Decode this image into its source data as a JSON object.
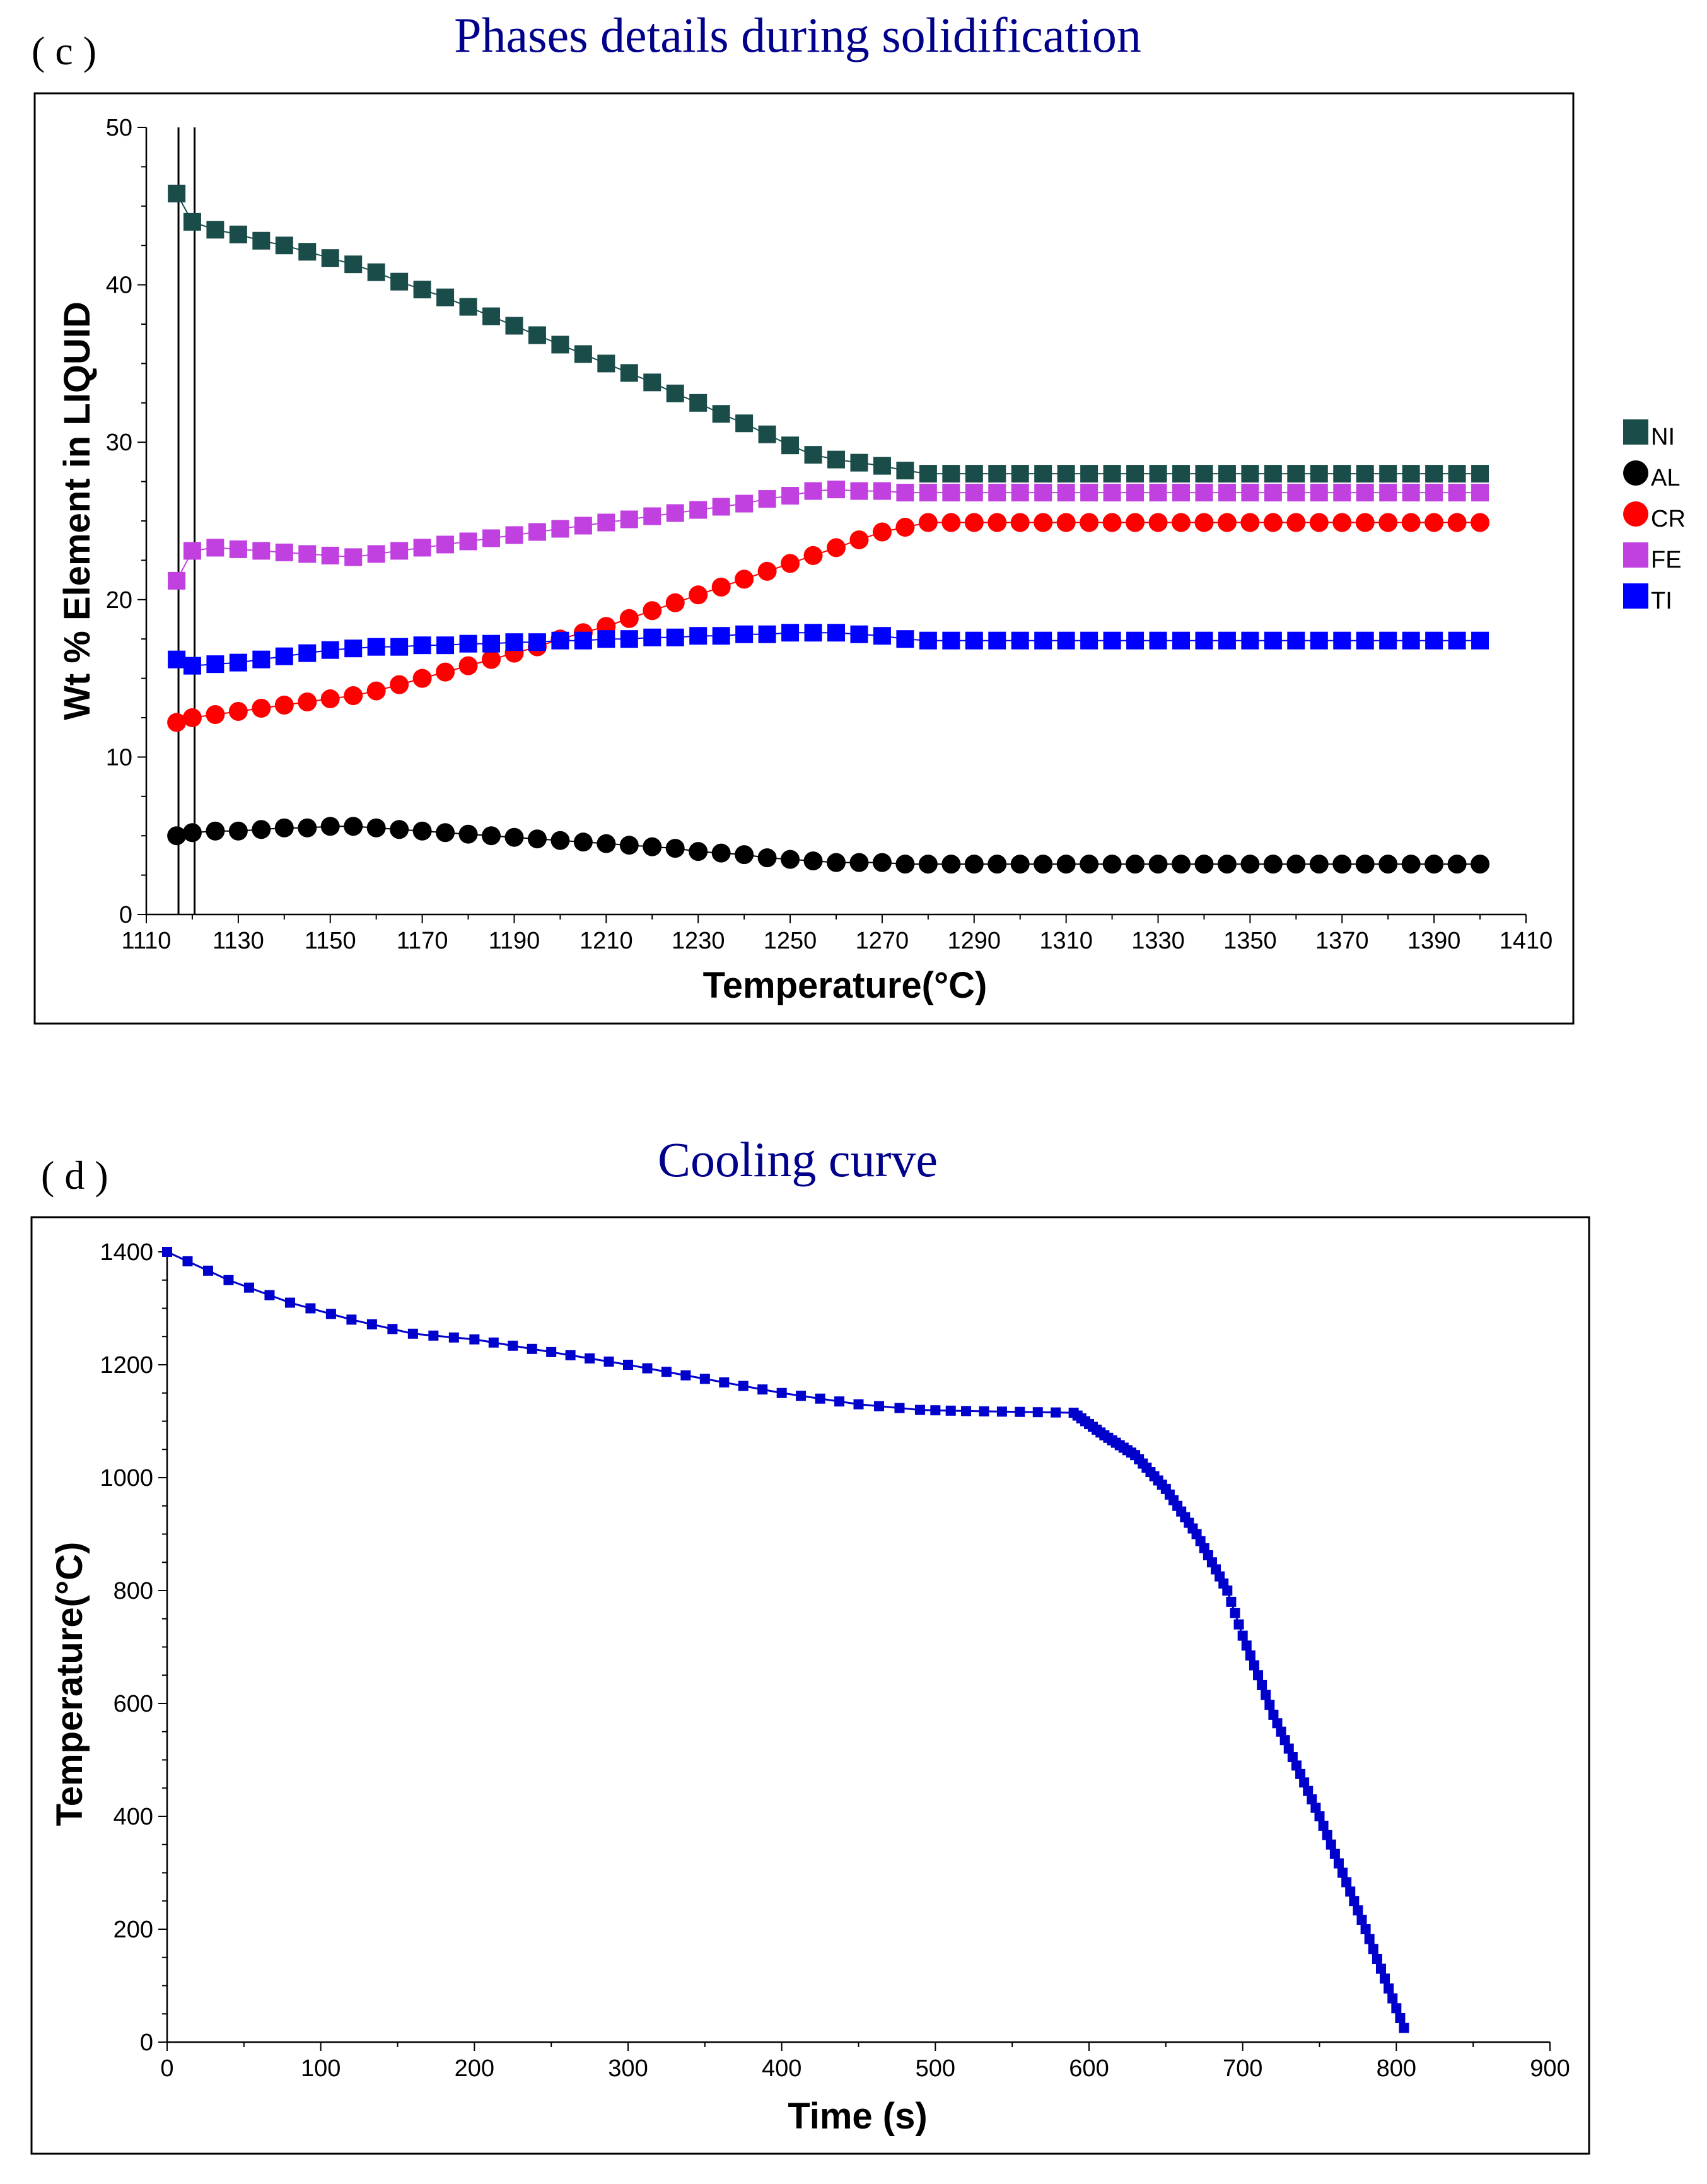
{
  "figure": {
    "title_color": "#00008b",
    "frame_color": "#000000"
  },
  "chart_data": [
    {
      "panel_label": "( c )",
      "type": "scatter",
      "title": "Phases details during solidification",
      "xlabel": "Temperature(°C)",
      "ylabel": "Wt %  Element in LIQUID",
      "xlim": [
        1110,
        1410
      ],
      "ylim": [
        0,
        50
      ],
      "xticks": [
        1110,
        1130,
        1150,
        1170,
        1190,
        1210,
        1230,
        1250,
        1270,
        1290,
        1310,
        1330,
        1350,
        1370,
        1390,
        1410
      ],
      "yticks": [
        0,
        10,
        20,
        30,
        40,
        50
      ],
      "vertical_reference_lines": [
        1117,
        1120.5
      ],
      "legend_position": "right",
      "x": [
        1116.6,
        1120.0,
        1125,
        1130,
        1135,
        1140,
        1145,
        1150,
        1155,
        1160,
        1165,
        1170,
        1175,
        1180,
        1185,
        1190,
        1195,
        1200,
        1205,
        1210,
        1215,
        1220,
        1225,
        1230,
        1235,
        1240,
        1245,
        1250,
        1255,
        1260,
        1265,
        1270,
        1275,
        1280,
        1285,
        1290,
        1295,
        1300,
        1305,
        1310,
        1315,
        1320,
        1325,
        1330,
        1335,
        1340,
        1345,
        1350,
        1355,
        1360,
        1365,
        1370,
        1375,
        1380,
        1385,
        1390,
        1395,
        1400
      ],
      "series": [
        {
          "name": "NI",
          "marker": "square",
          "color": "#1a4d4a",
          "values": [
            45.8,
            44.0,
            43.5,
            43.2,
            42.8,
            42.5,
            42.1,
            41.7,
            41.3,
            40.8,
            40.2,
            39.7,
            39.2,
            38.6,
            38.0,
            37.4,
            36.8,
            36.2,
            35.6,
            35.0,
            34.4,
            33.8,
            33.1,
            32.5,
            31.8,
            31.2,
            30.5,
            29.8,
            29.2,
            28.9,
            28.7,
            28.5,
            28.2,
            28.0,
            28.0,
            28.0,
            28.0,
            28.0,
            28.0,
            28.0,
            28.0,
            28.0,
            28.0,
            28.0,
            28.0,
            28.0,
            28.0,
            28.0,
            28.0,
            28.0,
            28.0,
            28.0,
            28.0,
            28.0,
            28.0,
            28.0,
            28.0,
            28.0
          ]
        },
        {
          "name": "AL",
          "marker": "circle",
          "color": "#000000",
          "values": [
            5.0,
            5.2,
            5.3,
            5.3,
            5.4,
            5.5,
            5.5,
            5.6,
            5.6,
            5.5,
            5.4,
            5.3,
            5.2,
            5.1,
            5.0,
            4.9,
            4.8,
            4.7,
            4.6,
            4.5,
            4.4,
            4.3,
            4.2,
            4.0,
            3.9,
            3.8,
            3.6,
            3.5,
            3.4,
            3.3,
            3.3,
            3.3,
            3.2,
            3.2,
            3.2,
            3.2,
            3.2,
            3.2,
            3.2,
            3.2,
            3.2,
            3.2,
            3.2,
            3.2,
            3.2,
            3.2,
            3.2,
            3.2,
            3.2,
            3.2,
            3.2,
            3.2,
            3.2,
            3.2,
            3.2,
            3.2,
            3.2,
            3.2
          ]
        },
        {
          "name": "CR",
          "marker": "circle",
          "color": "#ff0000",
          "values": [
            12.2,
            12.5,
            12.7,
            12.9,
            13.1,
            13.3,
            13.5,
            13.7,
            13.9,
            14.2,
            14.6,
            15.0,
            15.4,
            15.8,
            16.2,
            16.6,
            17.0,
            17.5,
            17.9,
            18.3,
            18.8,
            19.3,
            19.8,
            20.3,
            20.8,
            21.3,
            21.8,
            22.3,
            22.8,
            23.3,
            23.8,
            24.3,
            24.6,
            24.9,
            24.9,
            24.9,
            24.9,
            24.9,
            24.9,
            24.9,
            24.9,
            24.9,
            24.9,
            24.9,
            24.9,
            24.9,
            24.9,
            24.9,
            24.9,
            24.9,
            24.9,
            24.9,
            24.9,
            24.9,
            24.9,
            24.9,
            24.9,
            24.9
          ]
        },
        {
          "name": "FE",
          "marker": "square",
          "color": "#c040e0",
          "values": [
            21.2,
            23.1,
            23.3,
            23.2,
            23.1,
            23.0,
            22.9,
            22.8,
            22.7,
            22.9,
            23.1,
            23.3,
            23.5,
            23.7,
            23.9,
            24.1,
            24.3,
            24.5,
            24.7,
            24.9,
            25.1,
            25.3,
            25.5,
            25.7,
            25.9,
            26.1,
            26.4,
            26.6,
            26.9,
            27.0,
            26.9,
            26.9,
            26.8,
            26.8,
            26.8,
            26.8,
            26.8,
            26.8,
            26.8,
            26.8,
            26.8,
            26.8,
            26.8,
            26.8,
            26.8,
            26.8,
            26.8,
            26.8,
            26.8,
            26.8,
            26.8,
            26.8,
            26.8,
            26.8,
            26.8,
            26.8,
            26.8,
            26.8
          ]
        },
        {
          "name": "TI",
          "marker": "square",
          "color": "#0000ff",
          "values": [
            16.2,
            15.8,
            15.9,
            16.0,
            16.2,
            16.4,
            16.6,
            16.8,
            16.9,
            17.0,
            17.0,
            17.1,
            17.1,
            17.2,
            17.2,
            17.3,
            17.3,
            17.4,
            17.4,
            17.5,
            17.5,
            17.6,
            17.6,
            17.7,
            17.7,
            17.8,
            17.8,
            17.9,
            17.9,
            17.9,
            17.8,
            17.7,
            17.5,
            17.4,
            17.4,
            17.4,
            17.4,
            17.4,
            17.4,
            17.4,
            17.4,
            17.4,
            17.4,
            17.4,
            17.4,
            17.4,
            17.4,
            17.4,
            17.4,
            17.4,
            17.4,
            17.4,
            17.4,
            17.4,
            17.4,
            17.4,
            17.4,
            17.4
          ]
        }
      ]
    },
    {
      "panel_label": "( d )",
      "type": "line",
      "title": "Cooling curve",
      "xlabel": "Time (s)",
      "ylabel": "Temperature(°C)",
      "xlim": [
        0,
        900
      ],
      "ylim": [
        0,
        1400
      ],
      "xticks": [
        0,
        100,
        200,
        300,
        400,
        500,
        600,
        700,
        800,
        900
      ],
      "yticks": [
        0,
        200,
        400,
        600,
        800,
        1000,
        1200,
        1400
      ],
      "series": [
        {
          "name": "Temperature",
          "marker": "square",
          "color": "#0000cd",
          "x": [
            0,
            40,
            80,
            120,
            160,
            200,
            300,
            400,
            450,
            490,
            520,
            590,
            610,
            630,
            650,
            670,
            690,
            700,
            720,
            750,
            780,
            805
          ],
          "values": [
            1400,
            1350,
            1310,
            1280,
            1255,
            1245,
            1200,
            1150,
            1130,
            1120,
            1118,
            1115,
            1075,
            1040,
            980,
            900,
            800,
            720,
            580,
            400,
            200,
            25
          ]
        }
      ]
    }
  ]
}
